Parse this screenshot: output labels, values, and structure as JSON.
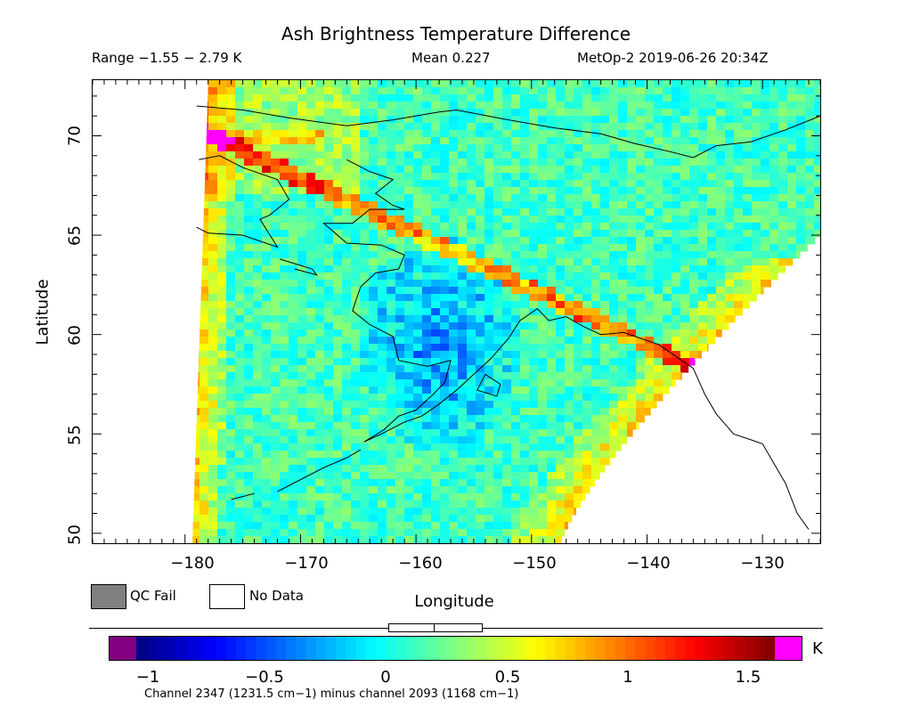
{
  "header": {
    "title": "Ash Brightness Temperature Difference",
    "range": "Range −1.55 − 2.79 K",
    "mean": "Mean 0.227",
    "satellite_time": "MetOp-2 2019-06-26 20:34Z"
  },
  "axes": {
    "ylabel": "Latitude",
    "xlabel": "Longitude",
    "xticks": [
      "−180",
      "−170",
      "−160",
      "−150",
      "−140",
      "−130"
    ],
    "yticks": [
      "50",
      "55",
      "60",
      "65",
      "70"
    ],
    "xlim": [
      -188,
      -125
    ],
    "ylim": [
      49.5,
      72.8
    ]
  },
  "legend": {
    "qc_fail": "QC Fail",
    "no_data": "No Data",
    "qc_fail_color": "#808080",
    "no_data_color": "#ffffff"
  },
  "colorbar": {
    "unit": "K",
    "ticks": [
      "−1",
      "−0.5",
      "0",
      "0.5",
      "1",
      "1.5"
    ],
    "tick_values": [
      -1,
      -0.5,
      0,
      0.5,
      1,
      1.5
    ],
    "range": [
      -1.1,
      1.75
    ],
    "under_color": "#800080",
    "over_color": "#ff00ff",
    "footnote": "Channel 2347 (1231.5 cm−1) minus channel 2093 (1168 cm−1)"
  },
  "chart_data": {
    "type": "heatmap",
    "title": "Ash Brightness Temperature Difference",
    "xlabel": "Longitude",
    "ylabel": "Latitude",
    "xlim": [
      -188,
      -125
    ],
    "ylim": [
      49.5,
      72.8
    ],
    "value_unit": "K",
    "value_range": [
      -1.55,
      2.79
    ],
    "mean": 0.227
  }
}
